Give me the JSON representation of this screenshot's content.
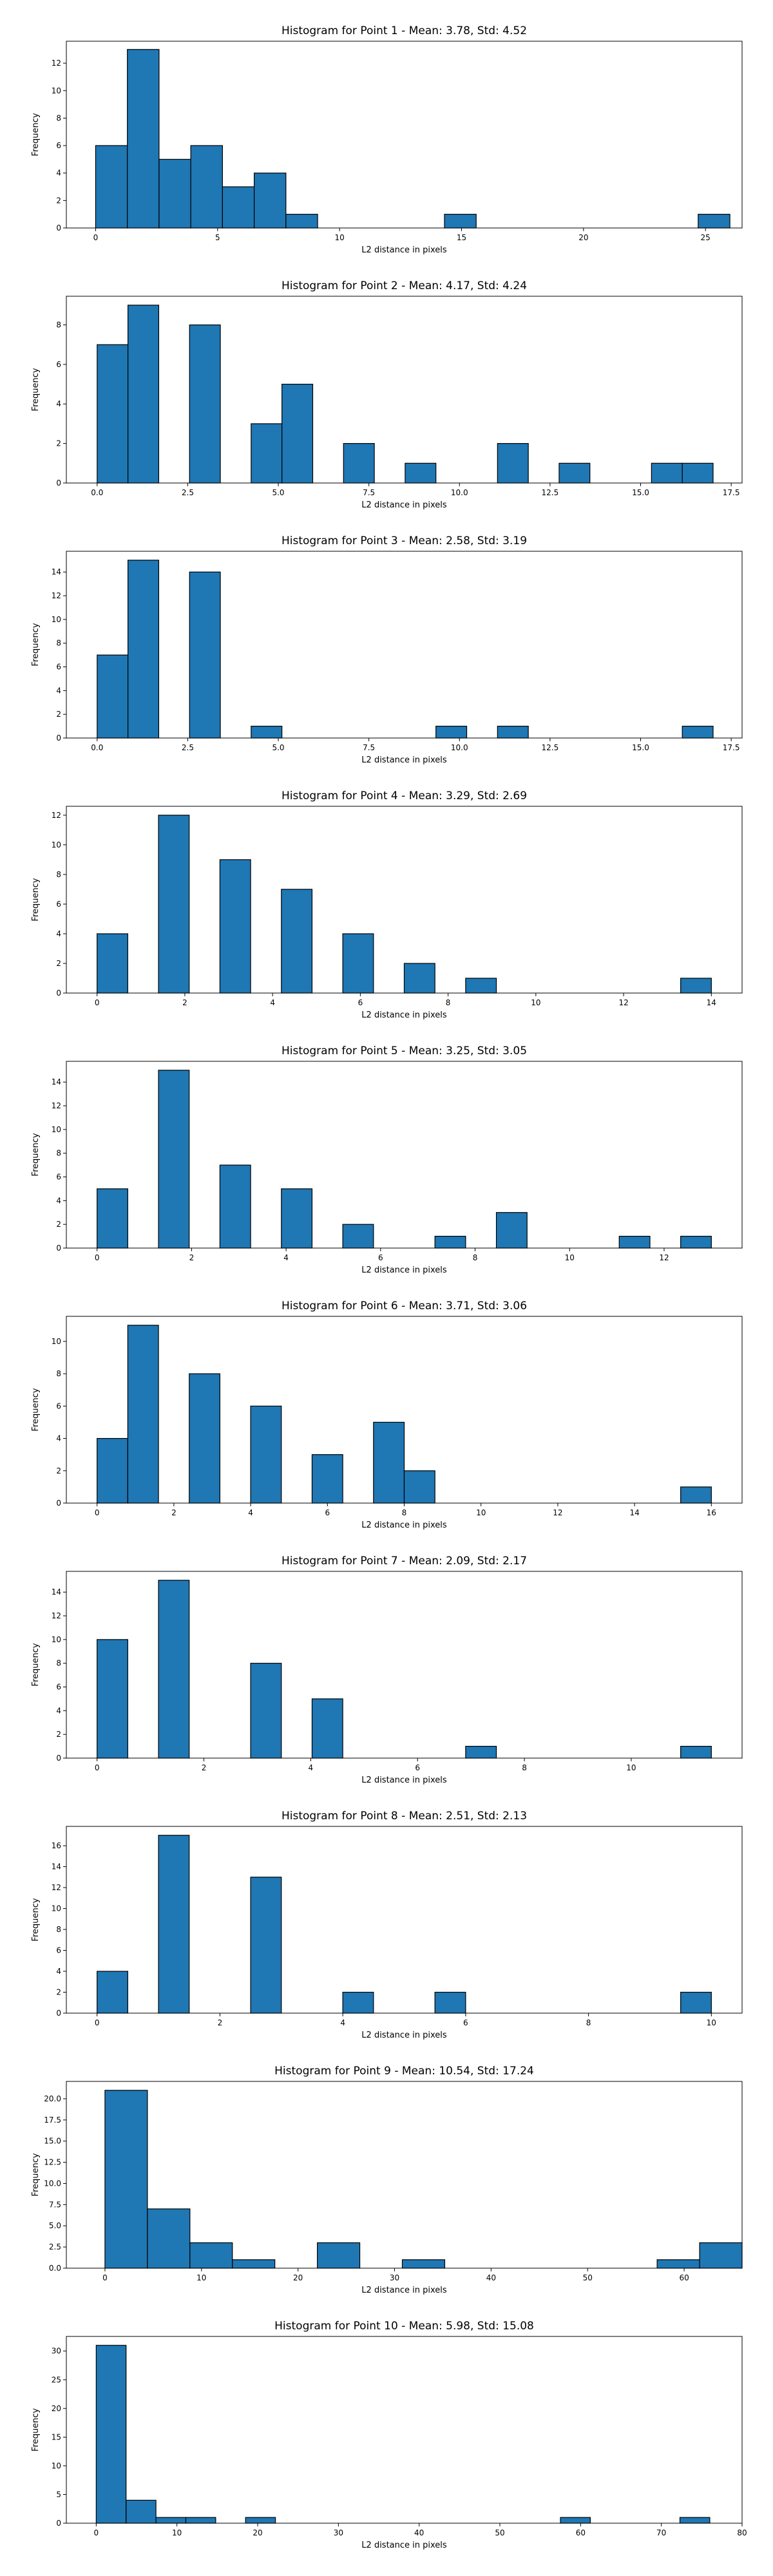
{
  "chart_data": [
    {
      "type": "bar",
      "title": "Histogram for Point 1 - Mean: 3.78, Std: 4.52",
      "xlabel": "L2 distance in pixels",
      "ylabel": "Frequency",
      "bin_width": 1.3,
      "xlim": [
        -1.2,
        26.5
      ],
      "ylim": [
        0,
        13.6
      ],
      "xticks": [
        0,
        5,
        10,
        15,
        20,
        25
      ],
      "xtick_labels": [
        "0",
        "5",
        "10",
        "15",
        "20",
        "25"
      ],
      "yticks": [
        0,
        2,
        4,
        6,
        8,
        10,
        12
      ],
      "ytick_labels": [
        "0",
        "2",
        "4",
        "6",
        "8",
        "10",
        "12"
      ],
      "bins": [
        {
          "x": 0.0,
          "value": 6
        },
        {
          "x": 1.3,
          "value": 13
        },
        {
          "x": 2.6,
          "value": 5
        },
        {
          "x": 3.9,
          "value": 6
        },
        {
          "x": 5.2,
          "value": 3
        },
        {
          "x": 6.5,
          "value": 4
        },
        {
          "x": 7.8,
          "value": 1
        },
        {
          "x": 14.3,
          "value": 1
        },
        {
          "x": 24.7,
          "value": 1
        }
      ]
    },
    {
      "type": "bar",
      "title": "Histogram for Point 2 - Mean: 4.17, Std: 4.24",
      "xlabel": "L2 distance in pixels",
      "ylabel": "Frequency",
      "bin_width": 0.85,
      "xlim": [
        -0.85,
        17.8
      ],
      "ylim": [
        0,
        9.45
      ],
      "xticks": [
        0,
        2.5,
        5,
        7.5,
        10,
        12.5,
        15,
        17.5
      ],
      "xtick_labels": [
        "0.0",
        "2.5",
        "5.0",
        "7.5",
        "10.0",
        "12.5",
        "15.0",
        "17.5"
      ],
      "yticks": [
        0,
        2,
        4,
        6,
        8
      ],
      "ytick_labels": [
        "0",
        "2",
        "4",
        "6",
        "8"
      ],
      "bins": [
        {
          "x": 0.0,
          "value": 7
        },
        {
          "x": 0.85,
          "value": 9
        },
        {
          "x": 2.55,
          "value": 8
        },
        {
          "x": 4.25,
          "value": 3
        },
        {
          "x": 5.1,
          "value": 5
        },
        {
          "x": 6.8,
          "value": 2
        },
        {
          "x": 8.5,
          "value": 1
        },
        {
          "x": 11.05,
          "value": 2
        },
        {
          "x": 12.75,
          "value": 1
        },
        {
          "x": 15.3,
          "value": 1
        },
        {
          "x": 16.15,
          "value": 1
        }
      ]
    },
    {
      "type": "bar",
      "title": "Histogram for Point 3 - Mean: 2.58, Std: 3.19",
      "xlabel": "L2 distance in pixels",
      "ylabel": "Frequency",
      "bin_width": 0.85,
      "xlim": [
        -0.85,
        17.8
      ],
      "ylim": [
        0,
        15.75
      ],
      "xticks": [
        0,
        2.5,
        5,
        7.5,
        10,
        12.5,
        15,
        17.5
      ],
      "xtick_labels": [
        "0.0",
        "2.5",
        "5.0",
        "7.5",
        "10.0",
        "12.5",
        "15.0",
        "17.5"
      ],
      "yticks": [
        0,
        2,
        4,
        6,
        8,
        10,
        12,
        14
      ],
      "ytick_labels": [
        "0",
        "2",
        "4",
        "6",
        "8",
        "10",
        "12",
        "14"
      ],
      "bins": [
        {
          "x": 0.0,
          "value": 7
        },
        {
          "x": 0.85,
          "value": 15
        },
        {
          "x": 2.55,
          "value": 14
        },
        {
          "x": 4.25,
          "value": 1
        },
        {
          "x": 9.35,
          "value": 1
        },
        {
          "x": 11.05,
          "value": 1
        },
        {
          "x": 16.15,
          "value": 1
        }
      ]
    },
    {
      "type": "bar",
      "title": "Histogram for Point 4 - Mean: 3.29, Std: 2.69",
      "xlabel": "L2 distance in pixels",
      "ylabel": "Frequency",
      "bin_width": 0.7,
      "xlim": [
        -0.7,
        14.7
      ],
      "ylim": [
        0,
        12.6
      ],
      "xticks": [
        0,
        2,
        4,
        6,
        8,
        10,
        12,
        14
      ],
      "xtick_labels": [
        "0",
        "2",
        "4",
        "6",
        "8",
        "10",
        "12",
        "14"
      ],
      "yticks": [
        0,
        2,
        4,
        6,
        8,
        10,
        12
      ],
      "ytick_labels": [
        "0",
        "2",
        "4",
        "6",
        "8",
        "10",
        "12"
      ],
      "bins": [
        {
          "x": 0.0,
          "value": 4
        },
        {
          "x": 1.4,
          "value": 12
        },
        {
          "x": 2.8,
          "value": 9
        },
        {
          "x": 4.2,
          "value": 7
        },
        {
          "x": 5.6,
          "value": 4
        },
        {
          "x": 7.0,
          "value": 2
        },
        {
          "x": 8.4,
          "value": 1
        },
        {
          "x": 13.3,
          "value": 1
        }
      ]
    },
    {
      "type": "bar",
      "title": "Histogram for Point 5 - Mean: 3.25, Std: 3.05",
      "xlabel": "L2 distance in pixels",
      "ylabel": "Frequency",
      "bin_width": 0.65,
      "xlim": [
        -0.65,
        13.65
      ],
      "ylim": [
        0,
        15.75
      ],
      "xticks": [
        0,
        2,
        4,
        6,
        8,
        10,
        12
      ],
      "xtick_labels": [
        "0",
        "2",
        "4",
        "6",
        "8",
        "10",
        "12"
      ],
      "yticks": [
        0,
        2,
        4,
        6,
        8,
        10,
        12,
        14
      ],
      "ytick_labels": [
        "0",
        "2",
        "4",
        "6",
        "8",
        "10",
        "12",
        "14"
      ],
      "bins": [
        {
          "x": 0.0,
          "value": 5
        },
        {
          "x": 1.3,
          "value": 15
        },
        {
          "x": 2.6,
          "value": 7
        },
        {
          "x": 3.9,
          "value": 5
        },
        {
          "x": 5.2,
          "value": 2
        },
        {
          "x": 7.15,
          "value": 1
        },
        {
          "x": 8.45,
          "value": 3
        },
        {
          "x": 11.05,
          "value": 1
        },
        {
          "x": 12.35,
          "value": 1
        }
      ]
    },
    {
      "type": "bar",
      "title": "Histogram for Point 6 - Mean: 3.71, Std: 3.06",
      "xlabel": "L2 distance in pixels",
      "ylabel": "Frequency",
      "bin_width": 0.8,
      "xlim": [
        -0.8,
        16.8
      ],
      "ylim": [
        0,
        11.55
      ],
      "xticks": [
        0,
        2,
        4,
        6,
        8,
        10,
        12,
        14,
        16
      ],
      "xtick_labels": [
        "0",
        "2",
        "4",
        "6",
        "8",
        "10",
        "12",
        "14",
        "16"
      ],
      "yticks": [
        0,
        2,
        4,
        6,
        8,
        10
      ],
      "ytick_labels": [
        "0",
        "2",
        "4",
        "6",
        "8",
        "10"
      ],
      "bins": [
        {
          "x": 0.0,
          "value": 4
        },
        {
          "x": 0.8,
          "value": 11
        },
        {
          "x": 2.4,
          "value": 8
        },
        {
          "x": 4.0,
          "value": 6
        },
        {
          "x": 5.6,
          "value": 3
        },
        {
          "x": 7.2,
          "value": 5
        },
        {
          "x": 8.0,
          "value": 2
        },
        {
          "x": 15.2,
          "value": 1
        }
      ]
    },
    {
      "type": "bar",
      "title": "Histogram for Point 7 - Mean: 2.09, Std: 2.17",
      "xlabel": "L2 distance in pixels",
      "ylabel": "Frequency",
      "bin_width": 0.575,
      "xlim": [
        -0.575,
        12.075
      ],
      "ylim": [
        0,
        15.75
      ],
      "xticks": [
        0,
        2,
        4,
        6,
        8,
        10
      ],
      "xtick_labels": [
        "0",
        "2",
        "4",
        "6",
        "8",
        "10"
      ],
      "yticks": [
        0,
        2,
        4,
        6,
        8,
        10,
        12,
        14
      ],
      "ytick_labels": [
        "0",
        "2",
        "4",
        "6",
        "8",
        "10",
        "12",
        "14"
      ],
      "bins": [
        {
          "x": 0.0,
          "value": 10
        },
        {
          "x": 1.15,
          "value": 15
        },
        {
          "x": 2.875,
          "value": 8
        },
        {
          "x": 4.025,
          "value": 5
        },
        {
          "x": 6.9,
          "value": 1
        },
        {
          "x": 10.925,
          "value": 1
        }
      ]
    },
    {
      "type": "bar",
      "title": "Histogram for Point 8 - Mean: 2.51, Std: 2.13",
      "xlabel": "L2 distance in pixels",
      "ylabel": "Frequency",
      "bin_width": 0.5,
      "xlim": [
        -0.5,
        10.5
      ],
      "ylim": [
        0,
        17.85
      ],
      "xticks": [
        0,
        2,
        4,
        6,
        8,
        10
      ],
      "xtick_labels": [
        "0",
        "2",
        "4",
        "6",
        "8",
        "10"
      ],
      "yticks": [
        0,
        2,
        4,
        6,
        8,
        10,
        12,
        14,
        16
      ],
      "ytick_labels": [
        "0",
        "2",
        "4",
        "6",
        "8",
        "10",
        "12",
        "14",
        "16"
      ],
      "bins": [
        {
          "x": 0.0,
          "value": 4
        },
        {
          "x": 1.0,
          "value": 17
        },
        {
          "x": 2.5,
          "value": 13
        },
        {
          "x": 4.0,
          "value": 2
        },
        {
          "x": 5.5,
          "value": 2
        },
        {
          "x": 9.5,
          "value": 2
        }
      ]
    },
    {
      "type": "bar",
      "title": "Histogram for Point 9 - Mean: 10.54, Std: 17.24",
      "xlabel": "L2 distance in pixels",
      "ylabel": "Frequency",
      "bin_width": 4.4,
      "xlim": [
        -4.0,
        66.0
      ],
      "ylim": [
        0,
        22.05
      ],
      "xticks": [
        0,
        10,
        20,
        30,
        40,
        50,
        60
      ],
      "xtick_labels": [
        "0",
        "10",
        "20",
        "30",
        "40",
        "50",
        "60"
      ],
      "yticks": [
        0,
        2.5,
        5,
        7.5,
        10,
        12.5,
        15,
        17.5,
        20
      ],
      "ytick_labels": [
        "0.0",
        "2.5",
        "5.0",
        "7.5",
        "10.0",
        "12.5",
        "15.0",
        "17.5",
        "20.0"
      ],
      "bins": [
        {
          "x": 0.0,
          "value": 21
        },
        {
          "x": 4.4,
          "value": 7
        },
        {
          "x": 8.8,
          "value": 3
        },
        {
          "x": 13.2,
          "value": 1
        },
        {
          "x": 22.0,
          "value": 3
        },
        {
          "x": 30.8,
          "value": 1
        },
        {
          "x": 57.2,
          "value": 1
        },
        {
          "x": 61.6,
          "value": 3
        }
      ]
    },
    {
      "type": "bar",
      "title": "Histogram for Point 10 - Mean: 5.98, Std: 15.08",
      "xlabel": "L2 distance in pixels",
      "ylabel": "Frequency",
      "bin_width": 3.7,
      "xlim": [
        -3.7,
        80.0
      ],
      "ylim": [
        0,
        32.55
      ],
      "xticks": [
        0,
        10,
        20,
        30,
        40,
        50,
        60,
        70,
        80
      ],
      "xtick_labels": [
        "0",
        "10",
        "20",
        "30",
        "40",
        "50",
        "60",
        "70",
        "80"
      ],
      "yticks": [
        0,
        5,
        10,
        15,
        20,
        25,
        30
      ],
      "ytick_labels": [
        "0",
        "5",
        "10",
        "15",
        "20",
        "25",
        "30"
      ],
      "bins": [
        {
          "x": 0.0,
          "value": 31
        },
        {
          "x": 3.7,
          "value": 4
        },
        {
          "x": 7.4,
          "value": 1
        },
        {
          "x": 11.1,
          "value": 1
        },
        {
          "x": 18.5,
          "value": 1
        },
        {
          "x": 57.5,
          "value": 1
        },
        {
          "x": 72.3,
          "value": 1
        }
      ]
    }
  ]
}
